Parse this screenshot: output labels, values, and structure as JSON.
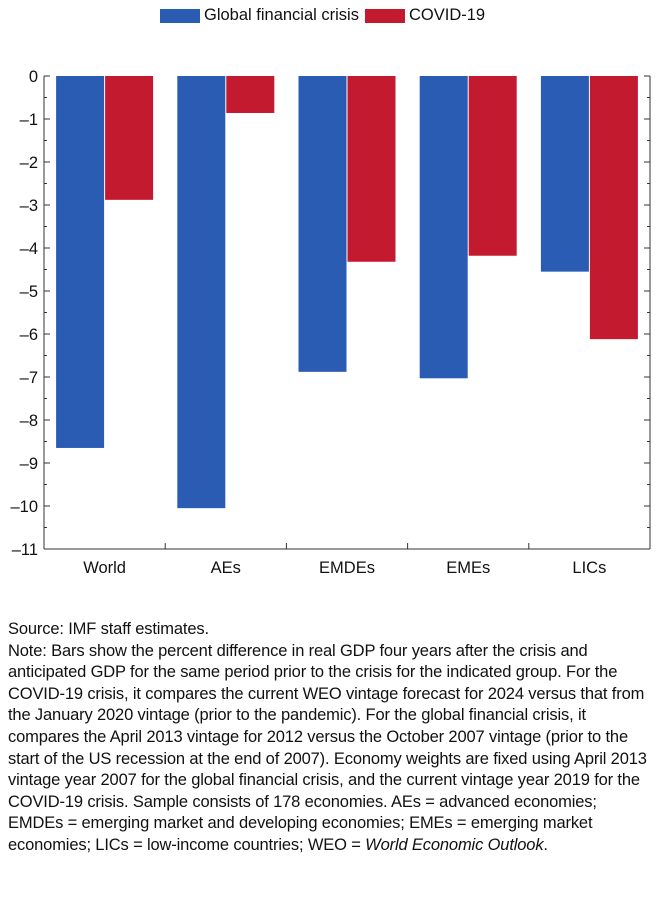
{
  "colors": {
    "gfc": "#2a5cb4",
    "covid": "#c41a30",
    "axis": "#333333"
  },
  "chart_data": {
    "type": "bar",
    "categories": [
      "World",
      "AEs",
      "EMDEs",
      "EMEs",
      "LICs"
    ],
    "series": [
      {
        "name": "Global financial crisis",
        "values": [
          -8.65,
          -10.05,
          -6.88,
          -7.03,
          -4.55
        ]
      },
      {
        "name": "COVID-19",
        "values": [
          -2.88,
          -0.86,
          -4.32,
          -4.18,
          -6.12
        ]
      }
    ],
    "ylim": [
      -11,
      0
    ],
    "yticks": [
      0,
      -1,
      -2,
      -3,
      -4,
      -5,
      -6,
      -7,
      -8,
      -9,
      -10,
      -11
    ],
    "ytick_labels": [
      "0",
      "–1",
      "–2",
      "–3",
      "–4",
      "–5",
      "–6",
      "–7",
      "–8",
      "–9",
      "–10",
      "–11"
    ],
    "legend_position": "top",
    "grid": false
  },
  "notes": {
    "source": "Source: IMF staff estimates.",
    "note_main": "Note: Bars show the percent difference in real GDP four years after the crisis and anticipated GDP for the same period prior to the crisis for the indicated group. For the COVID-19 crisis, it compares the current WEO vintage forecast for 2024 versus that from the January 2020 vintage (prior to the pandemic). For the global financial crisis, it compares the April 2013 vintage for 2012 versus the October 2007 vintage (prior to the start of the US recession at the end of 2007). Economy weights are fixed using April 2013 vintage year 2007 for the global financial crisis, and the current vintage year 2019 for the COVID-19 crisis. Sample consists of 178 economies. AEs = advanced economies; EMDEs = emerging market and developing economies; EMEs = emerging market economies; LICs = low-income countries; WEO = ",
    "note_italic": "World Economic Outlook",
    "note_end": "."
  }
}
